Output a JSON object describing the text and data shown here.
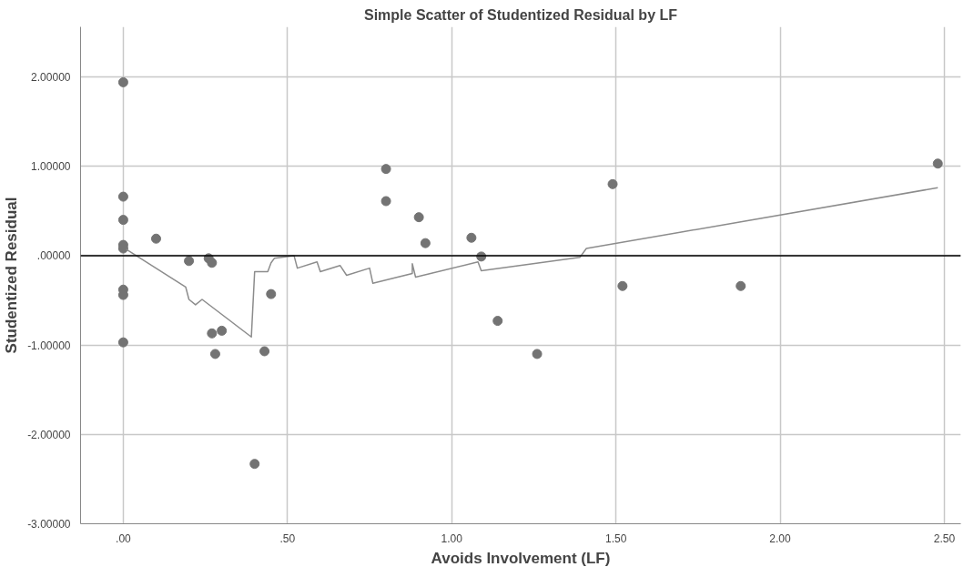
{
  "chart_data": {
    "type": "scatter",
    "title": "Simple Scatter of Studentized Residual by LF",
    "xlabel": "Avoids Involvement (LF)",
    "ylabel": "Studentized Residual",
    "xlim": [
      -0.13,
      2.55
    ],
    "ylim": [
      -3,
      2.56
    ],
    "xticks": [
      {
        "value": 0,
        "label": ".00"
      },
      {
        "value": 0.5,
        "label": ".50"
      },
      {
        "value": 1,
        "label": "1.00"
      },
      {
        "value": 1.5,
        "label": "1.50"
      },
      {
        "value": 2,
        "label": "2.00"
      },
      {
        "value": 2.5,
        "label": "2.50"
      }
    ],
    "yticks": [
      {
        "value": -3,
        "label": "-3.00000"
      },
      {
        "value": -2,
        "label": "-2.00000"
      },
      {
        "value": -1,
        "label": "-1.00000"
      },
      {
        "value": 0,
        "label": ".00000"
      },
      {
        "value": 1,
        "label": "1.00000"
      },
      {
        "value": 2,
        "label": "2.00000"
      }
    ],
    "grid": true,
    "marker": "circle",
    "ref_lines": [
      {
        "axis": "y",
        "value": 0,
        "color": "#000000"
      }
    ],
    "series": [
      {
        "color": "#737373",
        "x": [
          0,
          0,
          0,
          0,
          0,
          0,
          0,
          0,
          0.1,
          0.2,
          0.26,
          0.27,
          0.27,
          0.3,
          0.28,
          0.4,
          0.45,
          0.43,
          0.8,
          0.8,
          0.9,
          0.92,
          1.06,
          1.09,
          1.14,
          1.26,
          1.49,
          1.52,
          1.88,
          2.48
        ],
        "values": [
          1.94,
          0.66,
          0.4,
          0.12,
          0.08,
          -0.38,
          -0.44,
          -0.97,
          0.19,
          -0.06,
          -0.03,
          -0.08,
          -0.87,
          -0.84,
          -1.1,
          -2.33,
          -0.43,
          -1.07,
          0.97,
          0.61,
          0.43,
          0.14,
          0.2,
          -0.01,
          -0.73,
          -1.1,
          0.8,
          -0.34,
          -0.34,
          1.03
        ]
      },
      {
        "type": "line",
        "color": "#8c8c8c",
        "marker": "none",
        "x": [
          0.01,
          0.19,
          0.2,
          0.22,
          0.24,
          0.39,
          0.4,
          0.44,
          0.45,
          0.46,
          0.52,
          0.53,
          0.59,
          0.6,
          0.66,
          0.68,
          0.75,
          0.76,
          0.88,
          0.88,
          0.89,
          1.08,
          1.09,
          1.39,
          1.41,
          2.48
        ],
        "values": [
          0.07,
          -0.35,
          -0.49,
          -0.55,
          -0.49,
          -0.91,
          -0.18,
          -0.18,
          -0.08,
          -0.03,
          0.0,
          -0.14,
          -0.07,
          -0.18,
          -0.11,
          -0.22,
          -0.14,
          -0.31,
          -0.2,
          -0.09,
          -0.24,
          -0.07,
          -0.17,
          -0.02,
          0.08,
          0.76
        ]
      }
    ]
  }
}
